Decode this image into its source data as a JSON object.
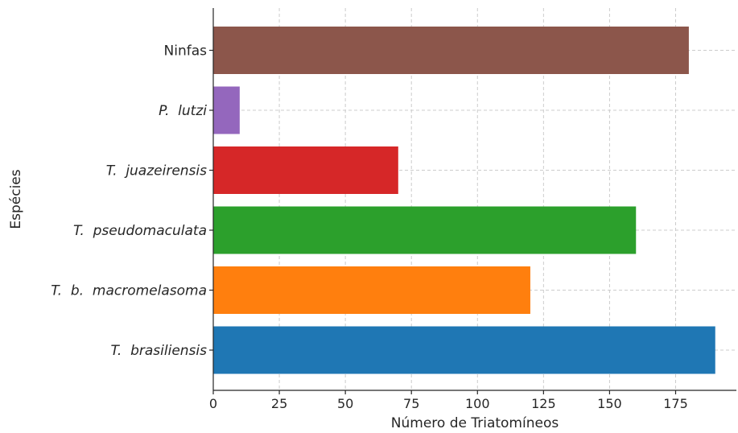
{
  "chart_data": {
    "type": "bar",
    "orientation": "horizontal",
    "categories": [
      "T.  brasiliensis",
      "T.  b.  macromelasoma",
      "T.  pseudomaculata",
      "T.  juazeirensis",
      "P.  lutzi",
      "Ninfas"
    ],
    "italic": [
      true,
      true,
      true,
      true,
      true,
      false
    ],
    "values": [
      190,
      120,
      160,
      70,
      10,
      180
    ],
    "colors": [
      "#1f77b4",
      "#ff7f0e",
      "#2ca02c",
      "#d62728",
      "#9467bd",
      "#8c564b"
    ],
    "xlabel": "Número de Triatomíneos",
    "ylabel": "Espécies",
    "xlim": [
      0,
      198
    ],
    "xticks": [
      0,
      25,
      50,
      75,
      100,
      125,
      150,
      175
    ],
    "grid": true
  }
}
